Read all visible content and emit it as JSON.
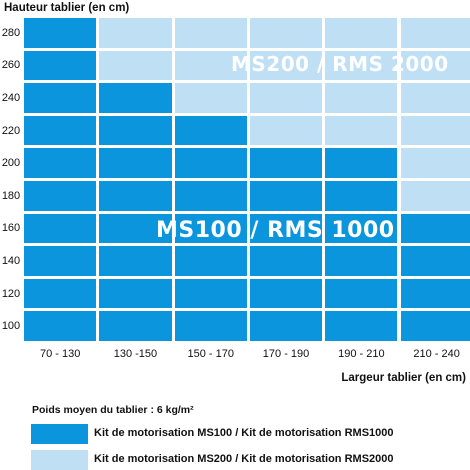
{
  "chart_data": {
    "type": "heatmap",
    "ylabel": "Hauteur tablier (en cm)",
    "xlabel": "Largeur tablier (en cm)",
    "x_categories": [
      "70 - 130",
      "130 -150",
      "150 - 170",
      "170 - 190",
      "190 - 210",
      "210 - 240"
    ],
    "y_categories": [
      "280",
      "260",
      "240",
      "220",
      "200",
      "180",
      "160",
      "140",
      "120",
      "100"
    ],
    "values": [
      [
        "MS100 / RMS1000",
        "MS200 / RMS2000",
        "MS200 / RMS2000",
        "MS200 / RMS2000",
        "MS200 / RMS2000",
        "MS200 / RMS2000"
      ],
      [
        "MS100 / RMS1000",
        "MS200 / RMS2000",
        "MS200 / RMS2000",
        "MS200 / RMS2000",
        "MS200 / RMS2000",
        "MS200 / RMS2000"
      ],
      [
        "MS100 / RMS1000",
        "MS100 / RMS1000",
        "MS200 / RMS2000",
        "MS200 / RMS2000",
        "MS200 / RMS2000",
        "MS200 / RMS2000"
      ],
      [
        "MS100 / RMS1000",
        "MS100 / RMS1000",
        "MS100 / RMS1000",
        "MS200 / RMS2000",
        "MS200 / RMS2000",
        "MS200 / RMS2000"
      ],
      [
        "MS100 / RMS1000",
        "MS100 / RMS1000",
        "MS100 / RMS1000",
        "MS100 / RMS1000",
        "MS100 / RMS1000",
        "MS200 / RMS2000"
      ],
      [
        "MS100 / RMS1000",
        "MS100 / RMS1000",
        "MS100 / RMS1000",
        "MS100 / RMS1000",
        "MS100 / RMS1000",
        "MS200 / RMS2000"
      ],
      [
        "MS100 / RMS1000",
        "MS100 / RMS1000",
        "MS100 / RMS1000",
        "MS100 / RMS1000",
        "MS100 / RMS1000",
        "MS100 / RMS1000"
      ],
      [
        "MS100 / RMS1000",
        "MS100 / RMS1000",
        "MS100 / RMS1000",
        "MS100 / RMS1000",
        "MS100 / RMS1000",
        "MS100 / RMS1000"
      ],
      [
        "MS100 / RMS1000",
        "MS100 / RMS1000",
        "MS100 / RMS1000",
        "MS100 / RMS1000",
        "MS100 / RMS1000",
        "MS100 / RMS1000"
      ],
      [
        "MS100 / RMS1000",
        "MS100 / RMS1000",
        "MS100 / RMS1000",
        "MS100 / RMS1000",
        "MS100 / RMS1000",
        "MS100 / RMS1000"
      ]
    ],
    "zone_labels": {
      "ms100": "MS100 / RMS 1000",
      "ms200": "MS200 / RMS 2000"
    },
    "colors": {
      "MS100 / RMS1000": "#0b95dd",
      "MS200 / RMS2000": "#bfdff5"
    },
    "legend": [
      {
        "key": "MS100 / RMS1000",
        "label": "Kit de motorisation MS100 / Kit de motorisation RMS1000"
      },
      {
        "key": "MS200 / RMS2000",
        "label": "Kit de motorisation MS200 / Kit de motorisation RMS2000"
      }
    ],
    "legend_position": "bottom",
    "note": "Poids moyen du tablier : 6 kg/m²"
  }
}
